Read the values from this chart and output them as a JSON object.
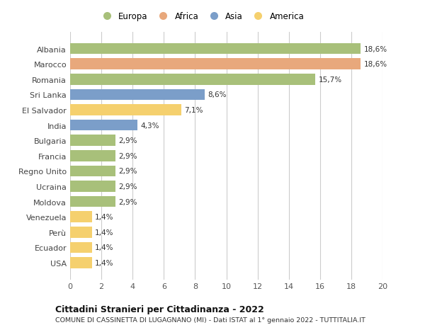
{
  "countries": [
    "Albania",
    "Marocco",
    "Romania",
    "Sri Lanka",
    "El Salvador",
    "India",
    "Bulgaria",
    "Francia",
    "Regno Unito",
    "Ucraina",
    "Moldova",
    "Venezuela",
    "Perù",
    "Ecuador",
    "USA"
  ],
  "values": [
    18.6,
    18.6,
    15.7,
    8.6,
    7.1,
    4.3,
    2.9,
    2.9,
    2.9,
    2.9,
    2.9,
    1.4,
    1.4,
    1.4,
    1.4
  ],
  "labels": [
    "18,6%",
    "18,6%",
    "15,7%",
    "8,6%",
    "7,1%",
    "4,3%",
    "2,9%",
    "2,9%",
    "2,9%",
    "2,9%",
    "2,9%",
    "1,4%",
    "1,4%",
    "1,4%",
    "1,4%"
  ],
  "continents": [
    "Europa",
    "Africa",
    "Europa",
    "Asia",
    "America",
    "Asia",
    "Europa",
    "Europa",
    "Europa",
    "Europa",
    "Europa",
    "America",
    "America",
    "America",
    "America"
  ],
  "colors": {
    "Europa": "#a8c07a",
    "Africa": "#e8a87c",
    "Asia": "#7b9ec9",
    "America": "#f5d06e"
  },
  "legend_order": [
    "Europa",
    "Africa",
    "Asia",
    "America"
  ],
  "title": "Cittadini Stranieri per Cittadinanza - 2022",
  "subtitle": "COMUNE DI CASSINETTA DI LUGAGNANO (MI) - Dati ISTAT al 1° gennaio 2022 - TUTTITALIA.IT",
  "xlim": [
    0,
    20
  ],
  "xticks": [
    0,
    2,
    4,
    6,
    8,
    10,
    12,
    14,
    16,
    18,
    20
  ],
  "background_color": "#ffffff",
  "grid_color": "#cccccc"
}
